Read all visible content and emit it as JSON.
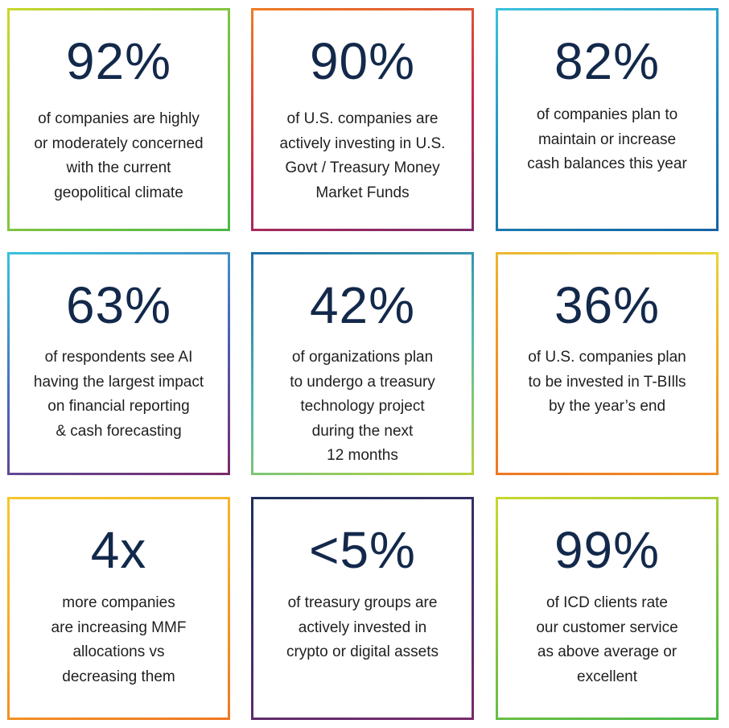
{
  "cards": [
    {
      "stat": "92%",
      "desc": "of companies are highly\nor moderately concerned\nwith the current\ngeopolitical climate"
    },
    {
      "stat": "90%",
      "desc": "of U.S. companies are\nactively investing in U.S.\nGovt / Treasury Money\nMarket Funds"
    },
    {
      "stat": "82%",
      "desc": "of companies plan to\nmaintain or increase\ncash balances this year"
    },
    {
      "stat": "63%",
      "desc": "of respondents see AI\nhaving the largest impact\non financial reporting\n& cash forecasting"
    },
    {
      "stat": "42%",
      "desc": "of organizations plan\nto undergo a treasury\ntechnology project\nduring the next\n12 months"
    },
    {
      "stat": "36%",
      "desc": "of U.S. companies plan\nto be invested in T-BIlls\nby the year’s end"
    },
    {
      "stat": "4x",
      "desc": "more companies\nare increasing MMF\nallocations vs\ndecreasing them"
    },
    {
      "stat": "<5%",
      "desc": "of treasury groups are\nactively invested in\ncrypto or digital assets"
    },
    {
      "stat": "99%",
      "desc": "of ICD clients rate\nour customer service\nas above average or\nexcellent"
    }
  ],
  "colors": {
    "stat_text": "#13294b",
    "body_text": "#1f1f1f",
    "borders": [
      "green-gradient",
      "orange-purple-gradient",
      "cyan-blue-gradient",
      "cyan-purple-gradient",
      "blue-lime-gradient",
      "yellow-orange-gradient",
      "yellow-orange-gradient",
      "navy-purple-gradient",
      "green-gradient"
    ]
  }
}
